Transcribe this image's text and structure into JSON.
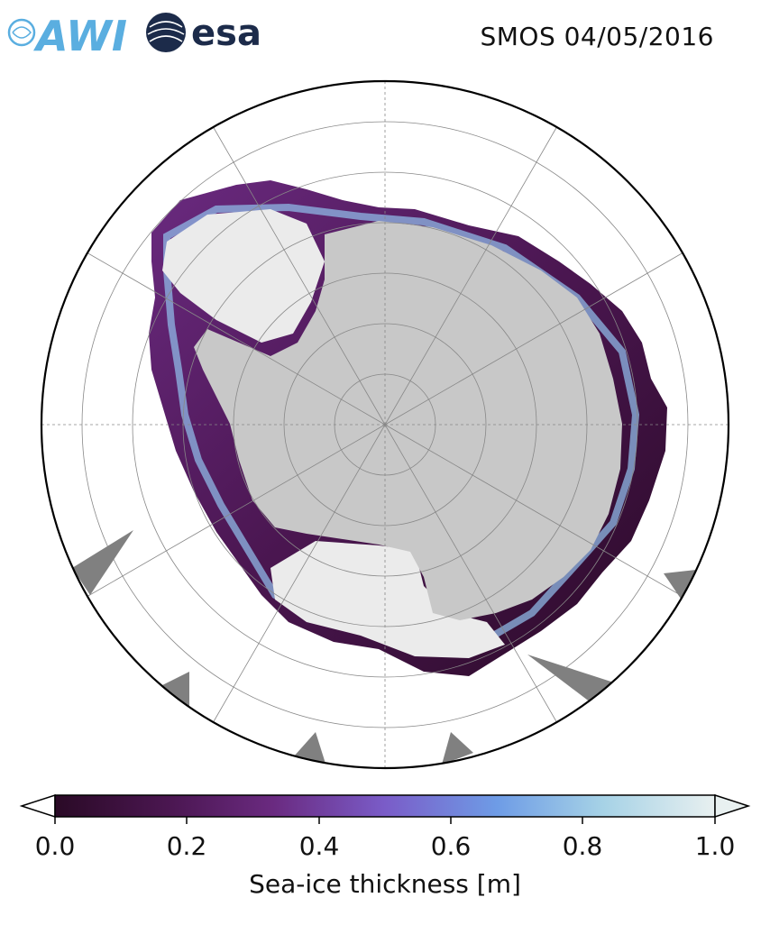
{
  "header": {
    "title": "SMOS 04/05/2016",
    "logos": [
      {
        "name": "awi-logo",
        "text": "AWI",
        "color": "#5aaee0"
      },
      {
        "name": "esa-logo",
        "text": "esa",
        "color": "#1c2b4a"
      }
    ]
  },
  "map": {
    "projection": "south-polar-stereographic",
    "colors": {
      "land": "#c8c8c8",
      "ice_shelf": "#ebebeb",
      "ocean": "#ffffff",
      "no_data": "#808080",
      "graticule": "#888888"
    }
  },
  "colorbar": {
    "label": "Sea-ice thickness [m]",
    "min": 0.0,
    "max": 1.0,
    "ticks": [
      "0.0",
      "0.2",
      "0.4",
      "0.6",
      "0.8",
      "1.0"
    ],
    "extend": "both",
    "colormap": [
      "#2a0a26",
      "#4a1650",
      "#6a2a80",
      "#7a5cc8",
      "#6e9ce6",
      "#a6d2e6",
      "#e8f0f0"
    ]
  }
}
